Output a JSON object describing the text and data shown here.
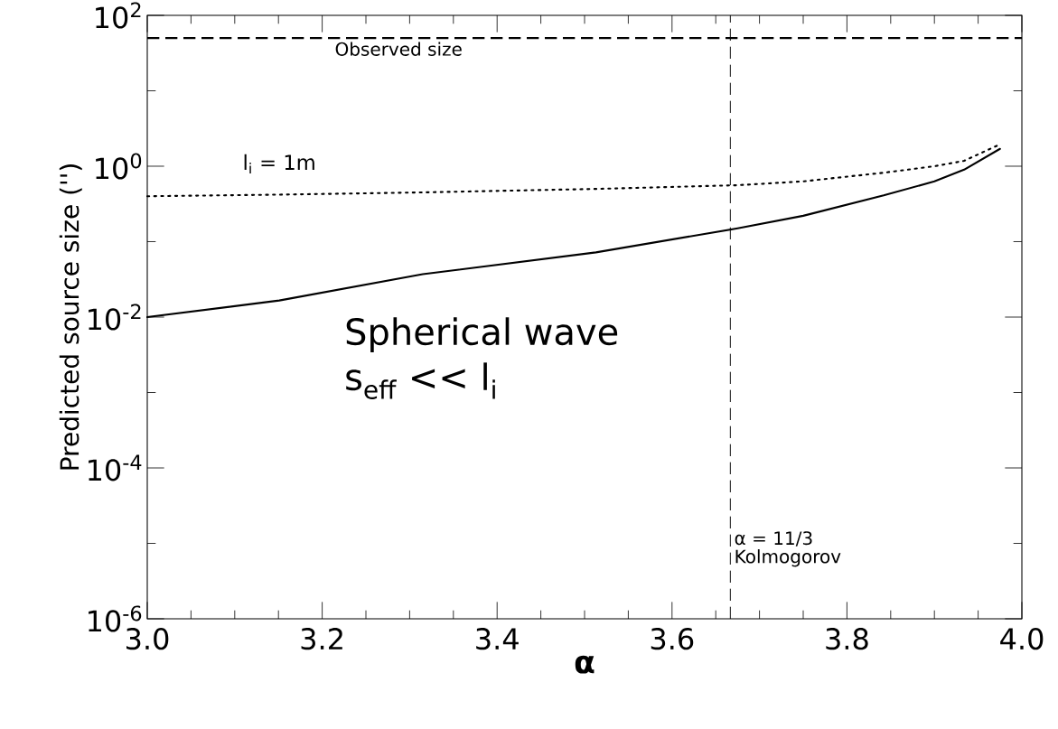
{
  "chart_data": {
    "type": "line",
    "xlabel": "α",
    "ylabel": "Predicted source size ('')",
    "x": [
      3.0,
      3.151,
      3.315,
      3.513,
      3.675,
      3.75,
      3.842,
      3.9,
      3.934,
      3.975
    ],
    "series": [
      {
        "color": "#000000",
        "line_style": "solid",
        "values": [
          0.01,
          0.0166,
          0.037,
          0.072,
          0.15,
          0.22,
          0.41,
          0.63,
          0.9,
          1.7
        ]
      },
      {
        "name": "l$_{i}$ = 1m",
        "color": "#000000",
        "line_style": "dotted",
        "values": [
          0.4,
          0.42,
          0.45,
          0.5,
          0.56,
          0.63,
          0.82,
          1.0,
          1.18,
          1.95
        ]
      }
    ],
    "xlim": [
      3.0,
      4.0
    ],
    "ylim": [
      1e-06,
      100
    ],
    "log": "y",
    "xticks": [
      {
        "value": 3.0,
        "label": "3.0"
      },
      {
        "value": 3.2,
        "label": "3.2"
      },
      {
        "value": 3.4,
        "label": "3.4"
      },
      {
        "value": 3.6,
        "label": "3.6"
      },
      {
        "value": 3.8,
        "label": "3.8"
      },
      {
        "value": 4.0,
        "label": "4.0"
      }
    ],
    "yticks": [
      {
        "value": 1e-06,
        "label": "10$^{-6}$"
      },
      {
        "value": 0.0001,
        "label": "10$^{-4}$"
      },
      {
        "value": 0.01,
        "label": "10$^{-2}$"
      },
      {
        "value": 1,
        "label": "10$^{0}$"
      },
      {
        "value": 100,
        "label": "10$^{2}$"
      }
    ],
    "ref_lines": [
      {
        "axis": "y",
        "value": 50,
        "label": "Observed size",
        "line_style": "dashed",
        "color": "#000000"
      },
      {
        "axis": "x",
        "value": 3.666667,
        "label": "Kolmogorov",
        "line_style": "dashed",
        "color": "#000000"
      }
    ],
    "annotations": [
      "Spherical wave",
      "s$_{eff}$ << l$_{i}$",
      "α = 11/3"
    ],
    "grid": false,
    "legend": false
  }
}
